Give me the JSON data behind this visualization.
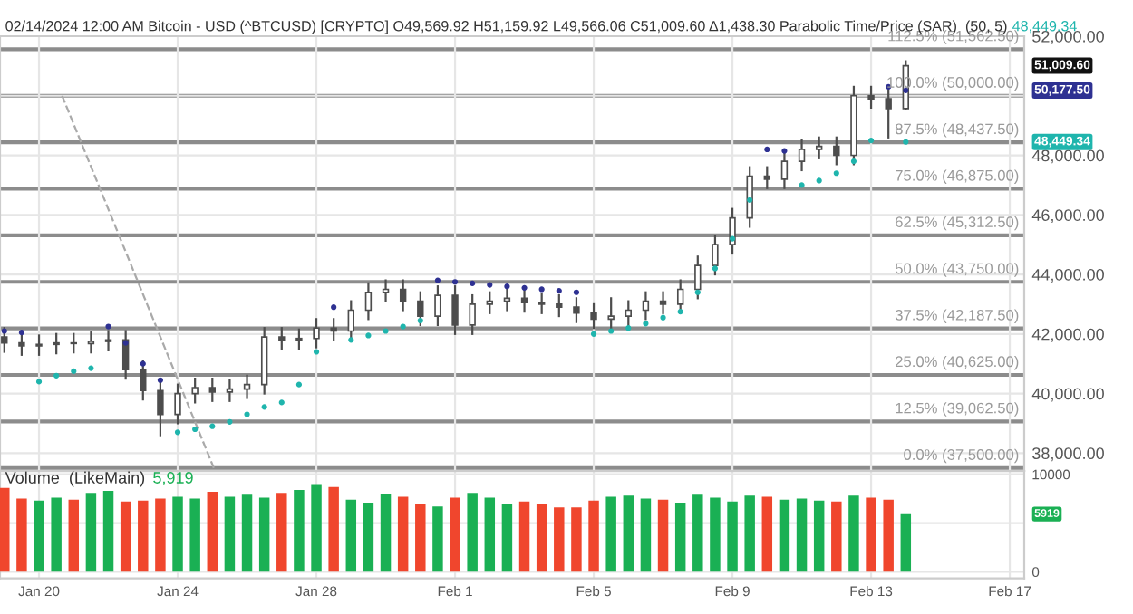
{
  "chart_data": [
    {
      "type": "candlestick",
      "title": "02/14/2024 12:00 AM Bitcoin - USD (^BTCUSD) [CRYPTO] O49,569.92 H51,159.92 L49,566.06 C51,009.60 Δ1,438.30 Parabolic Time/Price (SAR)  (50, 5)",
      "subtitle": "48,449.34",
      "color": "#4d4d4d",
      "x": [
        "2024-01-19T00:00",
        "2024-01-19T12:00",
        "2024-01-20T00:00",
        "2024-01-20T12:00",
        "2024-01-21T00:00",
        "2024-01-21T12:00",
        "2024-01-22T00:00",
        "2024-01-22T12:00",
        "2024-01-23T00:00",
        "2024-01-23T12:00",
        "2024-01-24T00:00",
        "2024-01-24T12:00",
        "2024-01-25T00:00",
        "2024-01-25T12:00",
        "2024-01-26T00:00",
        "2024-01-26T12:00",
        "2024-01-27T00:00",
        "2024-01-27T12:00",
        "2024-01-28T00:00",
        "2024-01-28T12:00",
        "2024-01-29T00:00",
        "2024-01-29T12:00",
        "2024-01-30T00:00",
        "2024-01-30T12:00",
        "2024-01-31T00:00",
        "2024-01-31T12:00",
        "2024-02-01T00:00",
        "2024-02-01T12:00",
        "2024-02-02T00:00",
        "2024-02-02T12:00",
        "2024-02-03T00:00",
        "2024-02-03T12:00",
        "2024-02-04T00:00",
        "2024-02-04T12:00",
        "2024-02-05T00:00",
        "2024-02-05T12:00",
        "2024-02-06T00:00",
        "2024-02-06T12:00",
        "2024-02-07T00:00",
        "2024-02-07T12:00",
        "2024-02-08T00:00",
        "2024-02-08T12:00",
        "2024-02-09T00:00",
        "2024-02-09T12:00",
        "2024-02-10T00:00",
        "2024-02-10T12:00",
        "2024-02-11T00:00",
        "2024-02-11T12:00",
        "2024-02-12T00:00",
        "2024-02-12T12:00",
        "2024-02-13T00:00",
        "2024-02-13T12:00",
        "2024-02-14T00:00"
      ],
      "ohlc": [
        [
          41900,
          42200,
          41400,
          41700
        ],
        [
          41700,
          42000,
          41300,
          41600
        ],
        [
          41600,
          41950,
          41300,
          41650
        ],
        [
          41650,
          42000,
          41350,
          41700
        ],
        [
          41700,
          42000,
          41380,
          41680
        ],
        [
          41680,
          42050,
          41380,
          41750
        ],
        [
          41750,
          42100,
          41450,
          41800
        ],
        [
          41800,
          42100,
          40500,
          40800
        ],
        [
          40800,
          41100,
          39800,
          40100
        ],
        [
          40100,
          40400,
          38600,
          39300
        ],
        [
          39300,
          40300,
          39000,
          40000
        ],
        [
          40000,
          40500,
          39700,
          40200
        ],
        [
          40200,
          40500,
          39750,
          40050
        ],
        [
          40050,
          40450,
          39750,
          40150
        ],
        [
          40150,
          40600,
          39850,
          40300
        ],
        [
          40300,
          42200,
          40000,
          41900
        ],
        [
          41900,
          42200,
          41500,
          41800
        ],
        [
          41800,
          42150,
          41500,
          41850
        ],
        [
          41850,
          42500,
          41550,
          42200
        ],
        [
          42200,
          42500,
          41800,
          42100
        ],
        [
          42100,
          43100,
          41800,
          42800
        ],
        [
          42800,
          43700,
          42500,
          43400
        ],
        [
          43400,
          43800,
          43100,
          43500
        ],
        [
          43500,
          43800,
          42800,
          43100
        ],
        [
          43100,
          43400,
          42300,
          42600
        ],
        [
          42600,
          43600,
          42300,
          43300
        ],
        [
          43300,
          43600,
          42000,
          42300
        ],
        [
          42300,
          43300,
          42000,
          43000
        ],
        [
          43000,
          43400,
          42700,
          43100
        ],
        [
          43100,
          43500,
          42800,
          43200
        ],
        [
          43200,
          43500,
          42750,
          43050
        ],
        [
          43050,
          43350,
          42700,
          43000
        ],
        [
          43000,
          43300,
          42600,
          42900
        ],
        [
          42900,
          43200,
          42400,
          42700
        ],
        [
          42700,
          43000,
          42200,
          42500
        ],
        [
          42500,
          43200,
          42200,
          42600
        ],
        [
          42600,
          43100,
          42300,
          42800
        ],
        [
          42800,
          43400,
          42500,
          43100
        ],
        [
          43100,
          43400,
          42700,
          43000
        ],
        [
          43000,
          43800,
          42700,
          43500
        ],
        [
          43500,
          44600,
          43200,
          44300
        ],
        [
          44300,
          45300,
          44000,
          45000
        ],
        [
          45000,
          46200,
          44700,
          45900
        ],
        [
          45900,
          47600,
          45600,
          47300
        ],
        [
          47300,
          47600,
          46900,
          47200
        ],
        [
          47200,
          48100,
          46900,
          47800
        ],
        [
          47800,
          48500,
          47500,
          48200
        ],
        [
          48200,
          48600,
          47900,
          48300
        ],
        [
          48300,
          48600,
          47700,
          48000
        ],
        [
          48000,
          50300,
          47700,
          50000
        ],
        [
          50000,
          50300,
          49600,
          49900
        ],
        [
          49900,
          50200,
          48600,
          49569.92
        ],
        [
          49569.92,
          51159.92,
          49566.06,
          51009.6
        ]
      ],
      "series": [
        {
          "type": "scatter",
          "color": "#2e3192",
          "values": [
            42100,
            42050,
            null,
            null,
            null,
            null,
            42250,
            41700,
            41000,
            40450,
            null,
            null,
            null,
            null,
            null,
            null,
            null,
            null,
            null,
            42900,
            null,
            null,
            null,
            null,
            null,
            43800,
            43750,
            43700,
            43650,
            43600,
            43550,
            43500,
            43450,
            43400,
            null,
            null,
            null,
            null,
            null,
            null,
            null,
            null,
            null,
            null,
            48200,
            48150,
            null,
            null,
            null,
            null,
            null,
            50300,
            50177.5
          ]
        },
        {
          "type": "scatter",
          "color": "#1fb5ad",
          "values": [
            null,
            null,
            40400,
            40600,
            40750,
            40850,
            null,
            null,
            null,
            null,
            38700,
            38800,
            38900,
            39050,
            39300,
            39550,
            39700,
            40300,
            41400,
            null,
            41800,
            41950,
            42100,
            42250,
            42450,
            null,
            null,
            null,
            null,
            null,
            null,
            null,
            null,
            null,
            42000,
            42100,
            42200,
            42350,
            42550,
            42750,
            43400,
            44200,
            45200,
            46500,
            null,
            null,
            47000,
            47150,
            47400,
            47800,
            48500,
            null,
            48449.34
          ]
        },
        {
          "type": "line",
          "color": "#aaaaaa",
          "line_style": "dashed",
          "marker": "none",
          "x": [
            "2024-01-20T16:00",
            "2024-01-25T01:00"
          ],
          "values": [
            50000,
            37500
          ]
        }
      ],
      "marker": "circle",
      "ref_lines": [
        {
          "axis": "y",
          "value": 51562.5,
          "label": "112.5% (51,562.50)",
          "color": "#8c8c8c"
        },
        {
          "axis": "y",
          "value": 50000,
          "label": "100.0% (50,000.00)",
          "color": "#8c8c8c"
        },
        {
          "axis": "y",
          "value": 48437.5,
          "label": "87.5% (48,437.50)",
          "color": "#8c8c8c"
        },
        {
          "axis": "y",
          "value": 46875,
          "label": "75.0% (46,875.00)",
          "color": "#8c8c8c"
        },
        {
          "axis": "y",
          "value": 45312.5,
          "label": "62.5% (45,312.50)",
          "color": "#8c8c8c"
        },
        {
          "axis": "y",
          "value": 43750,
          "label": "50.0% (43,750.00)",
          "color": "#8c8c8c"
        },
        {
          "axis": "y",
          "value": 42187.5,
          "label": "37.5% (42,187.50)",
          "color": "#8c8c8c"
        },
        {
          "axis": "y",
          "value": 40625,
          "label": "25.0% (40,625.00)",
          "color": "#8c8c8c"
        },
        {
          "axis": "y",
          "value": 39062.5,
          "label": "12.5% (39,062.50)",
          "color": "#8c8c8c"
        },
        {
          "axis": "y",
          "value": 37500,
          "label": "0.0% (37,500.00)",
          "color": "#8c8c8c"
        }
      ],
      "annotations": [
        "51,009.60",
        "50,177.50",
        "48,449.34"
      ],
      "xlim": [
        "2024-01-18T21:00",
        "2024-02-17T10:00"
      ],
      "xticks": [
        {
          "value": "2024-01-20",
          "label": null
        },
        {
          "value": "2024-01-24",
          "label": null
        },
        {
          "value": "2024-01-28",
          "label": null
        },
        {
          "value": "2024-02-01",
          "label": null
        },
        {
          "value": "2024-02-05",
          "label": null
        },
        {
          "value": "2024-02-09",
          "label": null
        },
        {
          "value": "2024-02-13",
          "label": null
        },
        {
          "value": "2024-02-17",
          "label": null
        }
      ],
      "ylim": [
        37400,
        52000
      ],
      "yticks": [
        {
          "value": 38000,
          "label": "38,000.00"
        },
        {
          "value": 40000,
          "label": "40,000.00"
        },
        {
          "value": 42000,
          "label": "42,000.00"
        },
        {
          "value": 44000,
          "label": "44,000.00"
        },
        {
          "value": 46000,
          "label": "46,000.00"
        },
        {
          "value": 48000,
          "label": "48,000.00"
        },
        {
          "value": 50000,
          "label": null
        },
        {
          "value": 52000,
          "label": "52,000.00"
        }
      ],
      "grid": true,
      "tick_labels": "y"
    },
    {
      "type": "bar",
      "title": "Volume  (LikeMain)",
      "subtitle": "5,919",
      "x": [
        "2024-01-19T00:00",
        "2024-01-19T12:00",
        "2024-01-20T00:00",
        "2024-01-20T12:00",
        "2024-01-21T00:00",
        "2024-01-21T12:00",
        "2024-01-22T00:00",
        "2024-01-22T12:00",
        "2024-01-23T00:00",
        "2024-01-23T12:00",
        "2024-01-24T00:00",
        "2024-01-24T12:00",
        "2024-01-25T00:00",
        "2024-01-25T12:00",
        "2024-01-26T00:00",
        "2024-01-26T12:00",
        "2024-01-27T00:00",
        "2024-01-27T12:00",
        "2024-01-28T00:00",
        "2024-01-28T12:00",
        "2024-01-29T00:00",
        "2024-01-29T12:00",
        "2024-01-30T00:00",
        "2024-01-30T12:00",
        "2024-01-31T00:00",
        "2024-01-31T12:00",
        "2024-02-01T00:00",
        "2024-02-01T12:00",
        "2024-02-02T00:00",
        "2024-02-02T12:00",
        "2024-02-03T00:00",
        "2024-02-03T12:00",
        "2024-02-04T00:00",
        "2024-02-04T12:00",
        "2024-02-05T00:00",
        "2024-02-05T12:00",
        "2024-02-06T00:00",
        "2024-02-06T12:00",
        "2024-02-07T00:00",
        "2024-02-07T12:00",
        "2024-02-08T00:00",
        "2024-02-08T12:00",
        "2024-02-09T00:00",
        "2024-02-09T12:00",
        "2024-02-10T00:00",
        "2024-02-10T12:00",
        "2024-02-11T00:00",
        "2024-02-11T12:00",
        "2024-02-12T00:00",
        "2024-02-12T12:00",
        "2024-02-13T00:00",
        "2024-02-13T12:00",
        "2024-02-14T00:00"
      ],
      "values": [
        8600,
        7500,
        7300,
        7600,
        7400,
        8100,
        8300,
        7200,
        7300,
        7500,
        7700,
        7500,
        8200,
        7700,
        7900,
        7600,
        8100,
        8400,
        8900,
        8700,
        7400,
        7100,
        8000,
        7700,
        7000,
        6700,
        7600,
        8100,
        7600,
        7000,
        7200,
        6900,
        6600,
        6600,
        7300,
        7700,
        7800,
        7500,
        7400,
        7100,
        7900,
        7600,
        7200,
        7800,
        7700,
        7400,
        7500,
        7300,
        7200,
        7800,
        7600,
        7400,
        5919
      ],
      "colors": [
        "#f0462d",
        "#f0462d",
        "#1ab054",
        "#1ab054",
        "#f0462d",
        "#1ab054",
        "#1ab054",
        "#f0462d",
        "#f0462d",
        "#f0462d",
        "#1ab054",
        "#1ab054",
        "#f0462d",
        "#1ab054",
        "#1ab054",
        "#1ab054",
        "#f0462d",
        "#1ab054",
        "#1ab054",
        "#f0462d",
        "#1ab054",
        "#1ab054",
        "#1ab054",
        "#f0462d",
        "#f0462d",
        "#1ab054",
        "#f0462d",
        "#1ab054",
        "#1ab054",
        "#1ab054",
        "#f0462d",
        "#f0462d",
        "#f0462d",
        "#f0462d",
        "#f0462d",
        "#1ab054",
        "#1ab054",
        "#1ab054",
        "#f0462d",
        "#1ab054",
        "#1ab054",
        "#1ab054",
        "#1ab054",
        "#1ab054",
        "#f0462d",
        "#1ab054",
        "#1ab054",
        "#1ab054",
        "#f0462d",
        "#1ab054",
        "#f0462d",
        "#f0462d",
        "#1ab054"
      ],
      "annotations": [
        "5919"
      ],
      "xlim": [
        "2024-01-18T21:00",
        "2024-02-17T10:00"
      ],
      "xticks": [
        {
          "value": "2024-01-20",
          "label": "Jan 20"
        },
        {
          "value": "2024-01-24",
          "label": "Jan 24"
        },
        {
          "value": "2024-01-28",
          "label": "Jan 28"
        },
        {
          "value": "2024-02-01",
          "label": "Feb 1"
        },
        {
          "value": "2024-02-05",
          "label": "Feb 5"
        },
        {
          "value": "2024-02-09",
          "label": "Feb 9"
        },
        {
          "value": "2024-02-13",
          "label": "Feb 13"
        },
        {
          "value": "2024-02-17",
          "label": "Feb 17"
        }
      ],
      "ylim": [
        -680,
        10340
      ],
      "yticks": [
        0,
        {
          "value": 5000,
          "label": null
        },
        10000
      ],
      "grid": true
    }
  ]
}
